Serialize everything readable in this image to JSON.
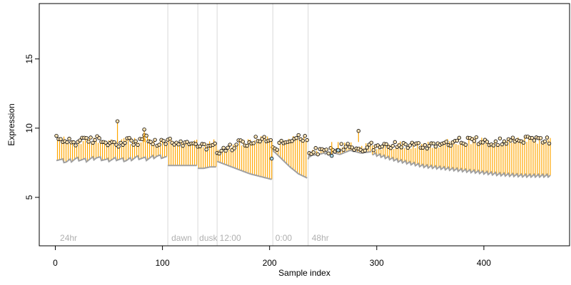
{
  "chart_data": {
    "type": "scatter",
    "title": "",
    "xlabel": "Sample index",
    "ylabel": "Expression",
    "xlim": [
      -15,
      480
    ],
    "ylim": [
      1.5,
      19.0
    ],
    "x_ticks": [
      0,
      100,
      200,
      300,
      400
    ],
    "y_ticks": [
      5,
      10,
      15
    ],
    "grid": false,
    "legend": "none",
    "colors": {
      "segment": "#FFA500",
      "lower_line": "#A0A0A0",
      "point_fill": "#FFE4B5",
      "point_fill_alt": "#ADD8E6",
      "point_stroke": "#000000",
      "divider": "#D9D9D9",
      "section_label": "#B0B0B0"
    },
    "dividers": [
      105,
      133,
      151,
      203,
      236
    ],
    "section_labels": [
      {
        "x": 3,
        "text": "24hr"
      },
      {
        "x": 107,
        "text": "dawn"
      },
      {
        "x": 133,
        "text": "dusk"
      },
      {
        "x": 152,
        "text": "12:00"
      },
      {
        "x": 204,
        "text": "0:00"
      },
      {
        "x": 238,
        "text": "48hr"
      }
    ],
    "groups": [
      {
        "x_start": 1,
        "x_end": 104,
        "upper": [
          9.2,
          9.1,
          9.0,
          9.1,
          9.2,
          9.0,
          8.9,
          9.1,
          9.0,
          9.3,
          8.8,
          9.1
        ],
        "lower": [
          7.8,
          7.6,
          7.8,
          7.7,
          7.9,
          7.7,
          7.8,
          7.7,
          7.9,
          7.8,
          8.0,
          7.9
        ],
        "sawtooth": 7
      },
      {
        "x_start": 105,
        "x_end": 132,
        "upper": [
          9.1,
          8.9,
          9.0,
          8.8,
          9.0,
          8.9
        ],
        "lower": [
          7.3,
          7.3,
          7.3,
          7.3,
          7.3,
          7.3
        ],
        "sawtooth": 0
      },
      {
        "x_start": 133,
        "x_end": 150,
        "upper": [
          8.8,
          8.6,
          8.9,
          9.0
        ],
        "lower": [
          7.1,
          7.1,
          7.2,
          7.2
        ],
        "sawtooth": 0
      },
      {
        "x_start": 151,
        "x_end": 202,
        "upper": [
          8.2,
          8.5,
          8.9,
          9.0,
          9.2,
          9.3
        ],
        "lower": [
          7.6,
          7.3,
          7.0,
          6.7,
          6.5,
          6.3
        ],
        "sawtooth": 0
      },
      {
        "x_start": 203,
        "x_end": 235,
        "upper": [
          8.5,
          8.9,
          9.2,
          9.4,
          9.3
        ],
        "lower": [
          8.4,
          7.8,
          7.2,
          6.7,
          6.4
        ],
        "sawtooth": 0
      },
      {
        "x_start": 236,
        "x_end": 295,
        "upper": [
          8.1,
          8.4,
          8.3,
          8.6,
          8.8,
          8.4,
          9.0
        ],
        "lower": [
          8.0,
          8.1,
          8.3,
          8.1,
          8.4,
          8.2,
          8.3
        ],
        "sawtooth": 0
      },
      {
        "x_start": 296,
        "x_end": 462,
        "upper": [
          8.6,
          8.8,
          8.7,
          9.0,
          9.1,
          9.0,
          9.2,
          9.1
        ],
        "lower": [
          8.2,
          7.7,
          7.3,
          7.1,
          6.9,
          6.7,
          6.6,
          6.6
        ],
        "sawtooth": 4
      }
    ],
    "outliers": [
      {
        "x": 58,
        "y": 10.5
      },
      {
        "x": 83,
        "y": 9.9
      },
      {
        "x": 283,
        "y": 9.8
      },
      {
        "x": 258,
        "y": 8.0,
        "fill": "alt"
      },
      {
        "x": 264,
        "y": 8.4,
        "fill": "alt"
      },
      {
        "x": 202,
        "y": 7.8,
        "fill": "alt"
      }
    ]
  }
}
